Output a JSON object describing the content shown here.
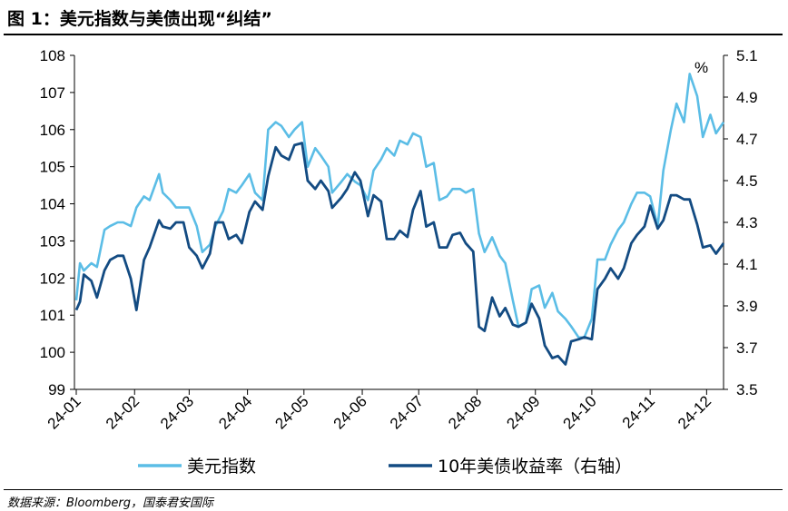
{
  "title": "图 1：美元指数与美债出现“纠结”",
  "source": "数据来源：Bloomberg，国泰君安国际",
  "chart_data": {
    "type": "line",
    "left_axis": {
      "ylim": [
        99,
        108
      ],
      "ticks": [
        "99",
        "100",
        "101",
        "102",
        "103",
        "104",
        "105",
        "106",
        "107",
        "108"
      ]
    },
    "right_axis": {
      "unit": "%",
      "ylim": [
        3.5,
        5.1
      ],
      "ticks": [
        "3.5",
        "3.7",
        "3.9",
        "4.1",
        "4.3",
        "4.5",
        "4.7",
        "4.9",
        "5.1"
      ]
    },
    "x_ticks": [
      "24-01",
      "24-02",
      "24-03",
      "24-04",
      "24-05",
      "24-06",
      "24-07",
      "24-08",
      "24-09",
      "24-10",
      "24-11",
      "24-12"
    ],
    "grid": false,
    "legend_position": "bottom",
    "series": [
      {
        "name": "美元指数",
        "axis": "left",
        "color": "#5bbde6",
        "points": [
          [
            "2024-01-01",
            101.4
          ],
          [
            "2024-01-03",
            102.4
          ],
          [
            "2024-01-05",
            102.2
          ],
          [
            "2024-01-09",
            102.4
          ],
          [
            "2024-01-12",
            102.3
          ],
          [
            "2024-01-16",
            103.3
          ],
          [
            "2024-01-19",
            103.4
          ],
          [
            "2024-01-23",
            103.5
          ],
          [
            "2024-01-26",
            103.5
          ],
          [
            "2024-01-30",
            103.4
          ],
          [
            "2024-02-02",
            103.9
          ],
          [
            "2024-02-06",
            104.2
          ],
          [
            "2024-02-09",
            104.1
          ],
          [
            "2024-02-14",
            104.8
          ],
          [
            "2024-02-16",
            104.3
          ],
          [
            "2024-02-20",
            104.1
          ],
          [
            "2024-02-23",
            103.9
          ],
          [
            "2024-02-27",
            103.9
          ],
          [
            "2024-03-01",
            103.9
          ],
          [
            "2024-03-05",
            103.4
          ],
          [
            "2024-03-08",
            102.7
          ],
          [
            "2024-03-12",
            102.9
          ],
          [
            "2024-03-15",
            103.4
          ],
          [
            "2024-03-19",
            103.8
          ],
          [
            "2024-03-22",
            104.4
          ],
          [
            "2024-03-26",
            104.3
          ],
          [
            "2024-03-29",
            104.5
          ],
          [
            "2024-04-02",
            104.8
          ],
          [
            "2024-04-05",
            104.3
          ],
          [
            "2024-04-09",
            104.1
          ],
          [
            "2024-04-12",
            106.0
          ],
          [
            "2024-04-16",
            106.2
          ],
          [
            "2024-04-19",
            106.1
          ],
          [
            "2024-04-23",
            105.8
          ],
          [
            "2024-04-26",
            106.0
          ],
          [
            "2024-04-30",
            106.2
          ],
          [
            "2024-05-03",
            105.0
          ],
          [
            "2024-05-07",
            105.5
          ],
          [
            "2024-05-10",
            105.3
          ],
          [
            "2024-05-14",
            105.0
          ],
          [
            "2024-05-16",
            104.3
          ],
          [
            "2024-05-21",
            104.6
          ],
          [
            "2024-05-24",
            104.8
          ],
          [
            "2024-05-28",
            104.6
          ],
          [
            "2024-05-31",
            104.5
          ],
          [
            "2024-06-04",
            104.1
          ],
          [
            "2024-06-07",
            104.9
          ],
          [
            "2024-06-11",
            105.2
          ],
          [
            "2024-06-14",
            105.5
          ],
          [
            "2024-06-18",
            105.3
          ],
          [
            "2024-06-21",
            105.7
          ],
          [
            "2024-06-25",
            105.6
          ],
          [
            "2024-06-28",
            105.9
          ],
          [
            "2024-07-02",
            105.8
          ],
          [
            "2024-07-05",
            105.0
          ],
          [
            "2024-07-09",
            105.1
          ],
          [
            "2024-07-12",
            104.1
          ],
          [
            "2024-07-16",
            104.2
          ],
          [
            "2024-07-19",
            104.4
          ],
          [
            "2024-07-23",
            104.4
          ],
          [
            "2024-07-26",
            104.3
          ],
          [
            "2024-07-30",
            104.4
          ],
          [
            "2024-08-02",
            103.2
          ],
          [
            "2024-08-05",
            102.7
          ],
          [
            "2024-08-09",
            103.1
          ],
          [
            "2024-08-13",
            102.6
          ],
          [
            "2024-08-16",
            102.4
          ],
          [
            "2024-08-20",
            101.4
          ],
          [
            "2024-08-23",
            100.7
          ],
          [
            "2024-08-27",
            100.8
          ],
          [
            "2024-08-30",
            101.7
          ],
          [
            "2024-09-03",
            101.8
          ],
          [
            "2024-09-06",
            101.2
          ],
          [
            "2024-09-10",
            101.6
          ],
          [
            "2024-09-13",
            101.1
          ],
          [
            "2024-09-17",
            100.9
          ],
          [
            "2024-09-20",
            100.7
          ],
          [
            "2024-09-24",
            100.4
          ],
          [
            "2024-09-27",
            100.4
          ],
          [
            "2024-10-01",
            100.9
          ],
          [
            "2024-10-04",
            102.5
          ],
          [
            "2024-10-08",
            102.5
          ],
          [
            "2024-10-11",
            102.9
          ],
          [
            "2024-10-15",
            103.3
          ],
          [
            "2024-10-18",
            103.5
          ],
          [
            "2024-10-22",
            104.0
          ],
          [
            "2024-10-25",
            104.3
          ],
          [
            "2024-10-29",
            104.3
          ],
          [
            "2024-11-01",
            104.2
          ],
          [
            "2024-11-05",
            103.4
          ],
          [
            "2024-11-08",
            104.9
          ],
          [
            "2024-11-12",
            106.0
          ],
          [
            "2024-11-15",
            106.7
          ],
          [
            "2024-11-19",
            106.2
          ],
          [
            "2024-11-22",
            107.5
          ],
          [
            "2024-11-26",
            106.9
          ],
          [
            "2024-11-29",
            105.8
          ],
          [
            "2024-12-03",
            106.4
          ],
          [
            "2024-12-06",
            105.9
          ],
          [
            "2024-12-10",
            106.2
          ]
        ]
      },
      {
        "name": "10年美债收益率（右轴）",
        "axis": "right",
        "color": "#134b82",
        "points": [
          [
            "2024-01-01",
            3.88
          ],
          [
            "2024-01-03",
            3.92
          ],
          [
            "2024-01-05",
            4.05
          ],
          [
            "2024-01-09",
            4.02
          ],
          [
            "2024-01-12",
            3.94
          ],
          [
            "2024-01-16",
            4.07
          ],
          [
            "2024-01-19",
            4.12
          ],
          [
            "2024-01-23",
            4.14
          ],
          [
            "2024-01-26",
            4.14
          ],
          [
            "2024-01-30",
            4.03
          ],
          [
            "2024-02-02",
            3.88
          ],
          [
            "2024-02-06",
            4.12
          ],
          [
            "2024-02-09",
            4.18
          ],
          [
            "2024-02-14",
            4.31
          ],
          [
            "2024-02-16",
            4.28
          ],
          [
            "2024-02-20",
            4.27
          ],
          [
            "2024-02-23",
            4.3
          ],
          [
            "2024-02-27",
            4.3
          ],
          [
            "2024-03-01",
            4.18
          ],
          [
            "2024-03-05",
            4.14
          ],
          [
            "2024-03-08",
            4.08
          ],
          [
            "2024-03-12",
            4.15
          ],
          [
            "2024-03-15",
            4.3
          ],
          [
            "2024-03-19",
            4.3
          ],
          [
            "2024-03-22",
            4.22
          ],
          [
            "2024-03-26",
            4.24
          ],
          [
            "2024-03-29",
            4.2
          ],
          [
            "2024-04-02",
            4.35
          ],
          [
            "2024-04-05",
            4.4
          ],
          [
            "2024-04-09",
            4.36
          ],
          [
            "2024-04-12",
            4.52
          ],
          [
            "2024-04-16",
            4.66
          ],
          [
            "2024-04-19",
            4.62
          ],
          [
            "2024-04-23",
            4.6
          ],
          [
            "2024-04-26",
            4.67
          ],
          [
            "2024-04-30",
            4.68
          ],
          [
            "2024-05-03",
            4.5
          ],
          [
            "2024-05-07",
            4.46
          ],
          [
            "2024-05-10",
            4.5
          ],
          [
            "2024-05-14",
            4.45
          ],
          [
            "2024-05-16",
            4.37
          ],
          [
            "2024-05-21",
            4.42
          ],
          [
            "2024-05-24",
            4.46
          ],
          [
            "2024-05-28",
            4.54
          ],
          [
            "2024-05-31",
            4.5
          ],
          [
            "2024-06-04",
            4.33
          ],
          [
            "2024-06-07",
            4.43
          ],
          [
            "2024-06-11",
            4.4
          ],
          [
            "2024-06-14",
            4.22
          ],
          [
            "2024-06-18",
            4.22
          ],
          [
            "2024-06-21",
            4.26
          ],
          [
            "2024-06-25",
            4.23
          ],
          [
            "2024-06-28",
            4.36
          ],
          [
            "2024-07-02",
            4.45
          ],
          [
            "2024-07-05",
            4.28
          ],
          [
            "2024-07-09",
            4.3
          ],
          [
            "2024-07-12",
            4.18
          ],
          [
            "2024-07-16",
            4.18
          ],
          [
            "2024-07-19",
            4.24
          ],
          [
            "2024-07-23",
            4.25
          ],
          [
            "2024-07-26",
            4.2
          ],
          [
            "2024-07-30",
            4.16
          ],
          [
            "2024-08-02",
            3.8
          ],
          [
            "2024-08-05",
            3.78
          ],
          [
            "2024-08-09",
            3.94
          ],
          [
            "2024-08-13",
            3.85
          ],
          [
            "2024-08-16",
            3.89
          ],
          [
            "2024-08-20",
            3.81
          ],
          [
            "2024-08-23",
            3.8
          ],
          [
            "2024-08-27",
            3.82
          ],
          [
            "2024-08-30",
            3.91
          ],
          [
            "2024-09-03",
            3.84
          ],
          [
            "2024-09-06",
            3.71
          ],
          [
            "2024-09-10",
            3.65
          ],
          [
            "2024-09-13",
            3.66
          ],
          [
            "2024-09-17",
            3.62
          ],
          [
            "2024-09-20",
            3.73
          ],
          [
            "2024-09-24",
            3.74
          ],
          [
            "2024-09-27",
            3.75
          ],
          [
            "2024-10-01",
            3.74
          ],
          [
            "2024-10-04",
            3.98
          ],
          [
            "2024-10-08",
            4.03
          ],
          [
            "2024-10-11",
            4.08
          ],
          [
            "2024-10-15",
            4.03
          ],
          [
            "2024-10-18",
            4.08
          ],
          [
            "2024-10-22",
            4.2
          ],
          [
            "2024-10-25",
            4.24
          ],
          [
            "2024-10-29",
            4.28
          ],
          [
            "2024-11-01",
            4.38
          ],
          [
            "2024-11-05",
            4.27
          ],
          [
            "2024-11-08",
            4.31
          ],
          [
            "2024-11-12",
            4.43
          ],
          [
            "2024-11-15",
            4.43
          ],
          [
            "2024-11-19",
            4.41
          ],
          [
            "2024-11-22",
            4.41
          ],
          [
            "2024-11-26",
            4.29
          ],
          [
            "2024-11-29",
            4.18
          ],
          [
            "2024-12-03",
            4.19
          ],
          [
            "2024-12-06",
            4.15
          ],
          [
            "2024-12-10",
            4.2
          ]
        ]
      }
    ]
  }
}
